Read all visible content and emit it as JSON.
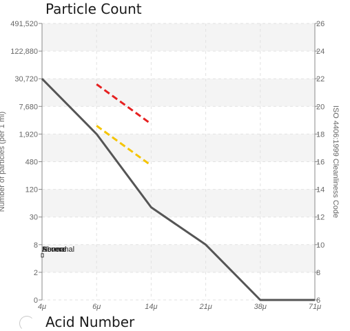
{
  "title": "Particle Count",
  "subtitle": "Acid Number",
  "chart_data": {
    "type": "line",
    "title": "Particle Count",
    "x_categories": [
      "4μ",
      "6μ",
      "14μ",
      "21μ",
      "38μ",
      "71μ"
    ],
    "y_left_ticks": [
      "0",
      "2",
      "8",
      "30",
      "120",
      "480",
      "1,920",
      "7,680",
      "30,720",
      "122,880",
      "491,520"
    ],
    "y_right_ticks": [
      "6",
      "8",
      "10",
      "12",
      "14",
      "16",
      "18",
      "20",
      "22",
      "24",
      "26"
    ],
    "ylabel_left": "Number of particles (per 1 ml)",
    "ylabel_right": "ISO 4406:1999 Cleanliness Code",
    "yrange_code": [
      6,
      26
    ],
    "series": [
      {
        "color": "#555555",
        "x_index": [
          0,
          1,
          2,
          3,
          4,
          5
        ],
        "code": [
          22.0,
          18.0,
          12.7,
          10.0,
          6.0,
          6.0
        ]
      }
    ],
    "limit_lines": [
      {
        "color": "#e62020",
        "x_index": [
          1,
          2
        ],
        "code": [
          21.6,
          18.8
        ],
        "style": "dashed"
      },
      {
        "color": "#f5c400",
        "x_index": [
          1,
          2
        ],
        "code": [
          18.6,
          15.8
        ],
        "style": "dashed"
      }
    ],
    "labels": [
      {
        "text": "Severe",
        "code": 9.7
      },
      {
        "text": "Abnormal",
        "code": 9.7
      },
      {
        "text": "Normal",
        "code": 9.7
      }
    ]
  }
}
